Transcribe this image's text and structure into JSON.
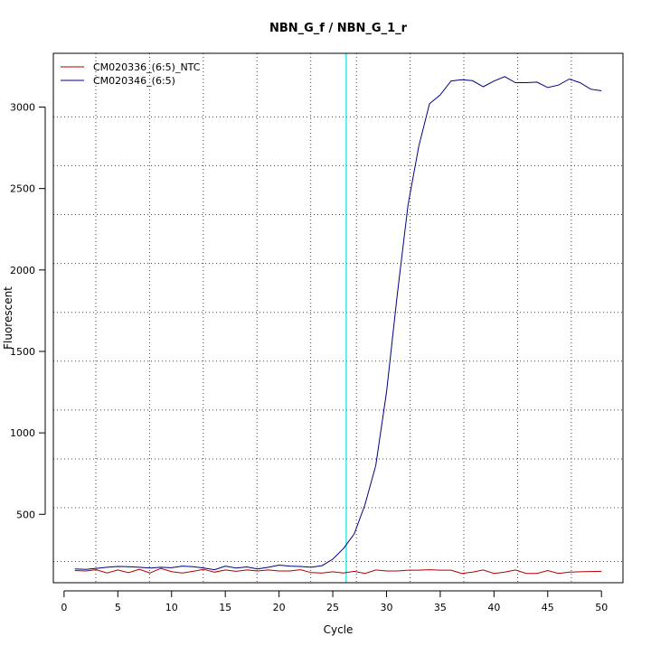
{
  "chart_data": {
    "type": "line",
    "title": "NBN_G_f / NBN_G_1_r",
    "xlabel": "Cycle",
    "ylabel": "Fluorescent",
    "xlim": [
      -1,
      52
    ],
    "ylim": [
      80,
      3330
    ],
    "x_ticks": [
      0,
      5,
      10,
      15,
      20,
      25,
      30,
      35,
      40,
      45,
      50
    ],
    "y_ticks": [
      500,
      1000,
      1500,
      2000,
      2500,
      3000
    ],
    "grid": {
      "style": "dotted",
      "vertical": [
        2.95,
        7.95,
        12.95,
        17.95,
        22.95,
        27.2,
        32.2,
        37.2,
        42.2,
        47.2
      ],
      "horizontal": [
        210,
        540,
        840,
        1140,
        1440,
        1740,
        2040,
        2340,
        2640,
        2940
      ]
    },
    "threshold": {
      "cycle": 26.25,
      "color": "#00e5e5"
    },
    "legend": {
      "position": "top-left"
    },
    "series": [
      {
        "name": "CM020336_(6:5)_NTC",
        "color": "#b20000",
        "x": [
          1,
          2,
          3,
          4,
          5,
          6,
          7,
          8,
          9,
          10,
          11,
          12,
          13,
          14,
          15,
          16,
          17,
          18,
          19,
          20,
          21,
          22,
          23,
          24,
          25,
          26,
          27,
          28,
          29,
          30,
          31,
          32,
          33,
          34,
          35,
          36,
          37,
          38,
          39,
          40,
          41,
          42,
          43,
          44,
          45,
          46,
          47,
          48,
          49,
          50
        ],
        "values": [
          155,
          152,
          160,
          140,
          158,
          142,
          162,
          140,
          168,
          148,
          140,
          150,
          162,
          145,
          158,
          150,
          158,
          152,
          158,
          152,
          152,
          160,
          142,
          140,
          147,
          140,
          150,
          137,
          158,
          152,
          152,
          157,
          157,
          160,
          157,
          157,
          137,
          145,
          158,
          137,
          145,
          158,
          137,
          137,
          155,
          137,
          145,
          147,
          149,
          150
        ]
      },
      {
        "name": "CM020346_(6:5)",
        "color": "#000080",
        "x": [
          1,
          2,
          3,
          4,
          5,
          6,
          7,
          8,
          9,
          10,
          11,
          12,
          13,
          14,
          15,
          16,
          17,
          18,
          19,
          20,
          21,
          22,
          23,
          24,
          25,
          26,
          27,
          28,
          29,
          30,
          31,
          32,
          33,
          34,
          35,
          36,
          37,
          38,
          39,
          40,
          41,
          42,
          43,
          44,
          45,
          46,
          47,
          48,
          49,
          50
        ],
        "values": [
          165,
          162,
          168,
          175,
          180,
          178,
          175,
          170,
          175,
          172,
          182,
          178,
          170,
          160,
          182,
          170,
          177,
          165,
          175,
          188,
          182,
          180,
          175,
          185,
          225,
          290,
          380,
          560,
          800,
          1250,
          1850,
          2400,
          2760,
          3020,
          3075,
          3160,
          3168,
          3162,
          3125,
          3160,
          3187,
          3150,
          3150,
          3153,
          3120,
          3135,
          3172,
          3150,
          3110,
          3100
        ]
      }
    ]
  }
}
